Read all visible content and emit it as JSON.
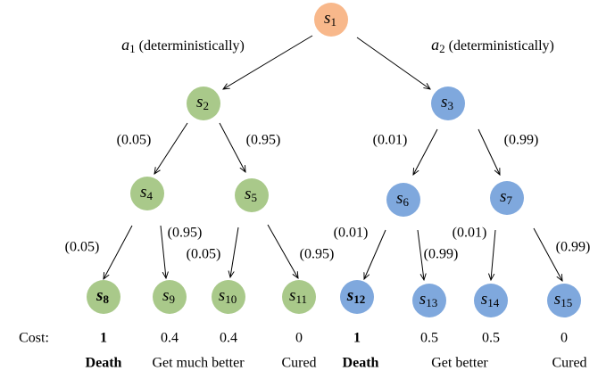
{
  "nodes": [
    {
      "label": "s",
      "sub": "1"
    },
    {
      "label": "s",
      "sub": "2"
    },
    {
      "label": "s",
      "sub": "3"
    },
    {
      "label": "s",
      "sub": "4"
    },
    {
      "label": "s",
      "sub": "5"
    },
    {
      "label": "s",
      "sub": "6"
    },
    {
      "label": "s",
      "sub": "7"
    },
    {
      "label": "s",
      "sub": "8"
    },
    {
      "label": "s",
      "sub": "9"
    },
    {
      "label": "s",
      "sub": "10"
    },
    {
      "label": "s",
      "sub": "11"
    },
    {
      "label": "s",
      "sub": "12"
    },
    {
      "label": "s",
      "sub": "13"
    },
    {
      "label": "s",
      "sub": "14"
    },
    {
      "label": "s",
      "sub": "15"
    }
  ],
  "actions": [
    {
      "symbol": "a",
      "sub": "1",
      "text": "(deterministically)"
    },
    {
      "symbol": "a",
      "sub": "2",
      "text": "(deterministically)"
    }
  ],
  "probabilities": [
    "(0.05)",
    "(0.95)",
    "(0.01)",
    "(0.99)",
    "(0.05)",
    "(0.95)",
    "(0.05)",
    "(0.95)",
    "(0.01)",
    "(0.99)",
    "(0.01)",
    "(0.99)"
  ],
  "cost_label": "Cost:",
  "costs": [
    1,
    0.4,
    0.4,
    0,
    1,
    0.5,
    0.5,
    0
  ],
  "outcomes": [
    "Death",
    "Get much better",
    "Cured",
    "Death",
    "Get better",
    "Cured"
  ]
}
